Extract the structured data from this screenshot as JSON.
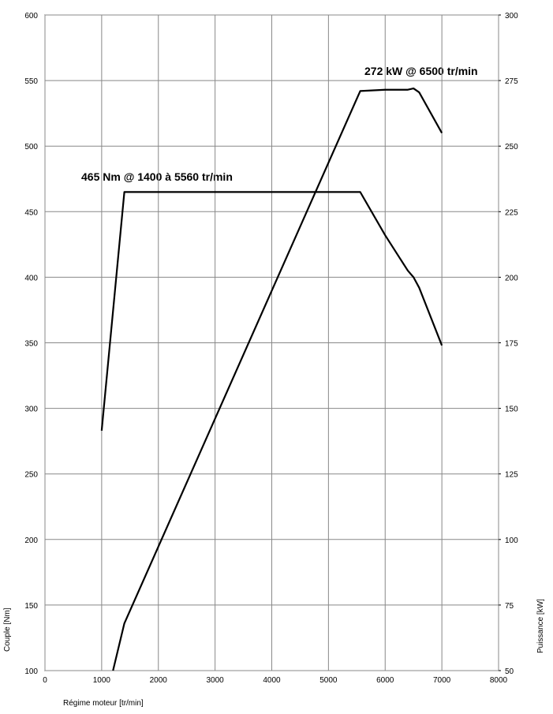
{
  "chart_data": {
    "type": "line",
    "xlabel": "Régime moteur [tr/min]",
    "ylabel": "Couple [Nm]",
    "y2label": "Puissance [kW]",
    "annotations": [
      "465 Nm @ 1400 à 5560 tr/min",
      "272 kW @ 6500 tr/min"
    ],
    "xlim": [
      0,
      8000
    ],
    "xticks": [
      0,
      1000,
      2000,
      3000,
      4000,
      5000,
      6000,
      7000,
      8000
    ],
    "ylim": [
      100,
      600
    ],
    "yticks": [
      100,
      150,
      200,
      250,
      300,
      350,
      400,
      450,
      500,
      550,
      600
    ],
    "y2lim": [
      50,
      300
    ],
    "y2ticks": [
      50,
      75,
      100,
      125,
      150,
      175,
      200,
      225,
      250,
      275,
      300
    ],
    "grid": true,
    "series": [
      {
        "name": "Couple",
        "color": "#000000",
        "x": [
          1000,
          1400,
          5560,
          6000,
          6400,
          6500,
          6600,
          7000
        ],
        "values": [
          283,
          465,
          465,
          432,
          405,
          400,
          392,
          348
        ]
      },
      {
        "name": "Puissance",
        "color": "#000000",
        "axis": "y2",
        "x": [
          1200,
          1400,
          5560,
          6000,
          6400,
          6500,
          6600,
          7000
        ],
        "values": [
          50,
          68,
          271,
          271.5,
          271.5,
          272,
          270.5,
          255
        ]
      }
    ]
  }
}
